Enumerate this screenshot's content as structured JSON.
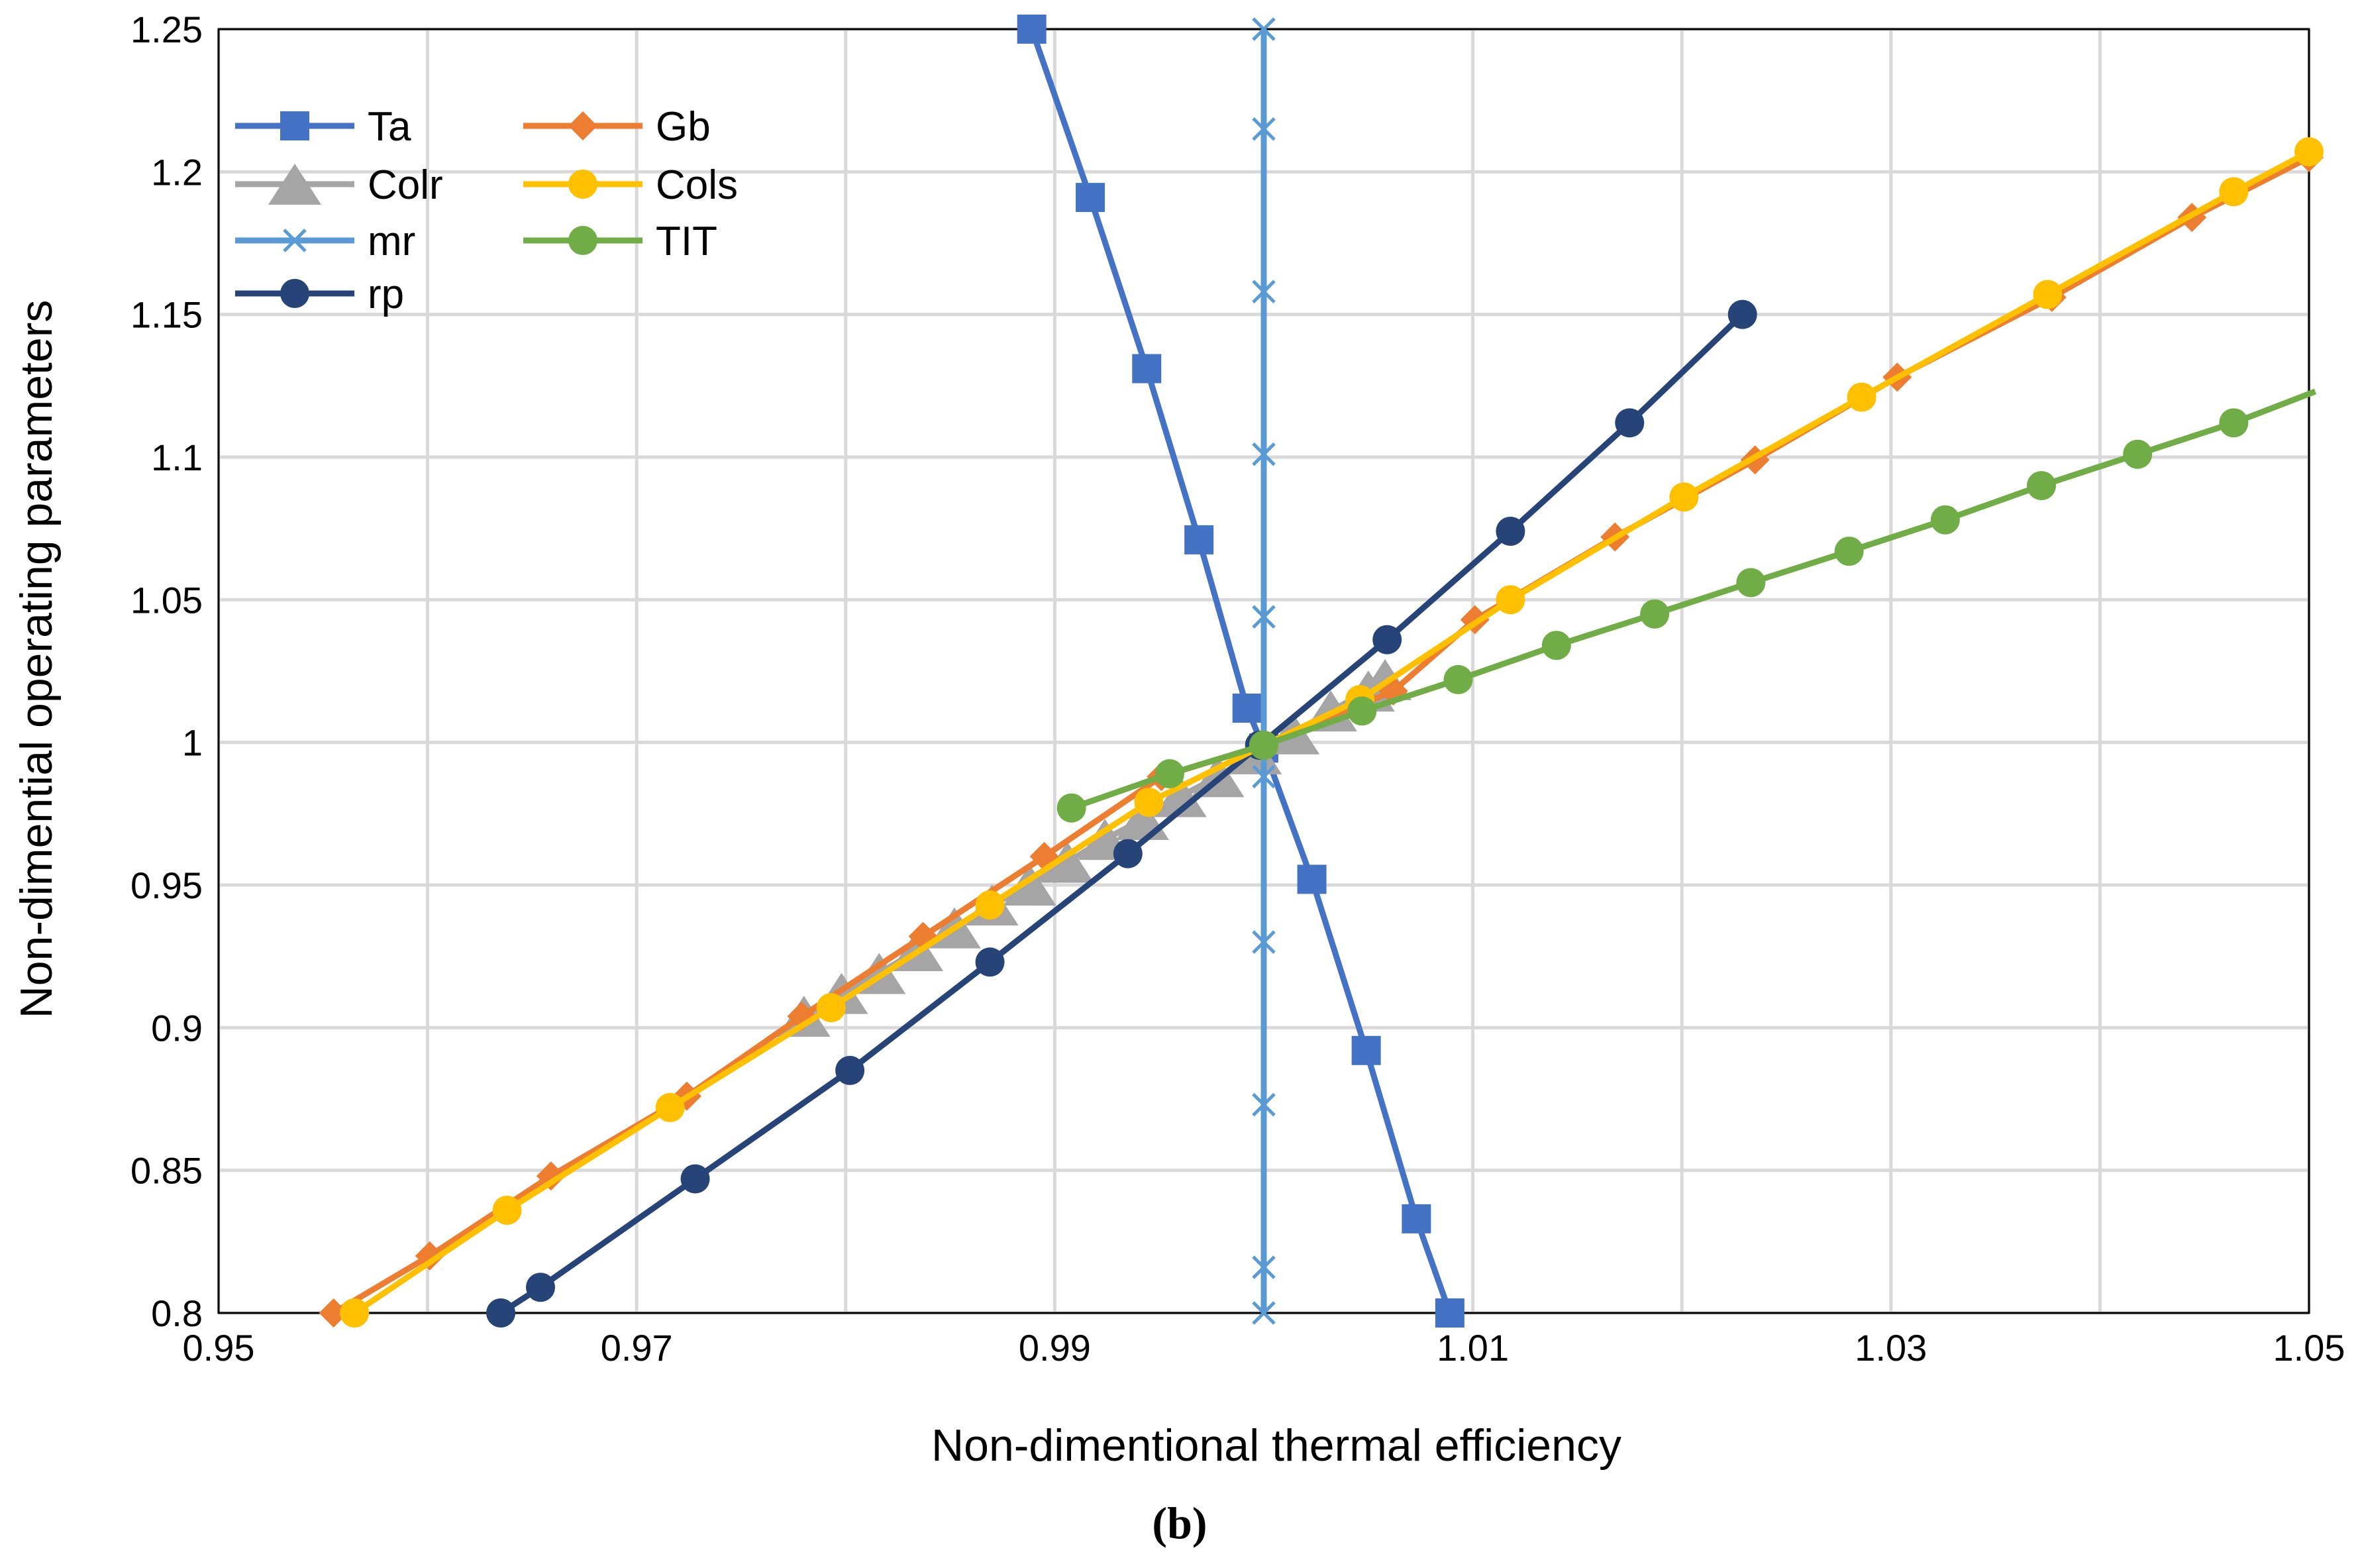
{
  "caption": {
    "prefix": "(",
    "letter": "b",
    "suffix": ")"
  },
  "chart_data": {
    "type": "line",
    "title": "",
    "xlabel": "Non-dimentional thermal efficiency",
    "ylabel": "Non-dimential operating parameters",
    "xlim": [
      0.95,
      1.05
    ],
    "ylim": [
      0.8,
      1.25
    ],
    "x_ticks": [
      "0.95",
      "0.97",
      "0.99",
      "1.01",
      "1.03",
      "1.05"
    ],
    "x_tick_values": [
      0.95,
      0.97,
      0.99,
      1.01,
      1.03,
      1.05
    ],
    "x_gridlines": [
      0.95,
      0.96,
      0.97,
      0.98,
      0.99,
      1.0,
      1.01,
      1.02,
      1.03,
      1.04,
      1.05
    ],
    "y_ticks": [
      "0.8",
      "0.85",
      "0.9",
      "0.95",
      "1",
      "1.05",
      "1.1",
      "1.15",
      "1.2",
      "1.25"
    ],
    "y_tick_values": [
      0.8,
      0.85,
      0.9,
      0.95,
      1.0,
      1.05,
      1.1,
      1.15,
      1.2,
      1.25
    ],
    "grid": true,
    "legend_position": "top-left",
    "series": [
      {
        "name": "Ta",
        "color": "#4472c4",
        "marker": "square",
        "points": [
          [
            0.9889,
            1.25
          ],
          [
            0.9917,
            1.191
          ],
          [
            0.9944,
            1.131
          ],
          [
            0.9969,
            1.071
          ],
          [
            0.9992,
            1.012
          ],
          [
            1.0,
            0.998
          ],
          [
            1.0023,
            0.952
          ],
          [
            1.0049,
            0.892
          ],
          [
            1.0073,
            0.833
          ],
          [
            1.0089,
            0.8
          ]
        ]
      },
      {
        "name": "Colr",
        "color": "#a5a5a5",
        "marker": "triangle",
        "points": [
          [
            0.978,
            0.904
          ],
          [
            0.9798,
            0.912
          ],
          [
            0.9816,
            0.919
          ],
          [
            0.9834,
            0.927
          ],
          [
            0.9852,
            0.935
          ],
          [
            0.987,
            0.943
          ],
          [
            0.9888,
            0.95
          ],
          [
            0.9906,
            0.958
          ],
          [
            0.9924,
            0.966
          ],
          [
            0.9942,
            0.973
          ],
          [
            0.996,
            0.981
          ],
          [
            0.9978,
            0.988
          ],
          [
            0.9996,
            0.996
          ],
          [
            1.0014,
            1.003
          ],
          [
            1.0032,
            1.011
          ],
          [
            1.005,
            1.018
          ],
          [
            1.0058,
            1.022
          ]
        ]
      },
      {
        "name": "mr",
        "color": "#5b9bd5",
        "marker": "x",
        "points": [
          [
            1.0,
            0.8
          ],
          [
            1.0,
            0.816
          ],
          [
            1.0,
            0.873
          ],
          [
            1.0,
            0.93
          ],
          [
            1.0,
            0.988
          ],
          [
            1.0,
            1.044
          ],
          [
            1.0,
            1.101
          ],
          [
            1.0,
            1.158
          ],
          [
            1.0,
            1.215
          ],
          [
            1.0,
            1.25
          ]
        ]
      },
      {
        "name": "rp",
        "color": "#264478",
        "marker": "circle",
        "points": [
          [
            0.9635,
            0.8
          ],
          [
            0.9654,
            0.809
          ],
          [
            0.9728,
            0.847
          ],
          [
            0.9802,
            0.885
          ],
          [
            0.9869,
            0.923
          ],
          [
            0.9935,
            0.961
          ],
          [
            0.9998,
            0.999
          ],
          [
            1.0059,
            1.036
          ],
          [
            1.0118,
            1.074
          ],
          [
            1.0175,
            1.112
          ],
          [
            1.0229,
            1.15
          ]
        ]
      },
      {
        "name": "Gb",
        "color": "#ed7d31",
        "marker": "diamond",
        "points": [
          [
            0.9555,
            0.8
          ],
          [
            0.9601,
            0.82
          ],
          [
            0.9659,
            0.848
          ],
          [
            0.9724,
            0.876
          ],
          [
            0.9779,
            0.904
          ],
          [
            0.9837,
            0.932
          ],
          [
            0.9895,
            0.96
          ],
          [
            0.9951,
            0.988
          ],
          [
            1.0,
            0.999
          ],
          [
            1.0062,
            1.018
          ],
          [
            1.0101,
            1.043
          ],
          [
            1.0168,
            1.072
          ],
          [
            1.0235,
            1.099
          ],
          [
            1.0303,
            1.128
          ],
          [
            1.0377,
            1.156
          ],
          [
            1.0444,
            1.184
          ],
          [
            1.05,
            1.205
          ]
        ]
      },
      {
        "name": "Cols",
        "color": "#ffc000",
        "marker": "circle",
        "points": [
          [
            0.9565,
            0.8
          ],
          [
            0.9638,
            0.836
          ],
          [
            0.9716,
            0.872
          ],
          [
            0.9793,
            0.907
          ],
          [
            0.9869,
            0.943
          ],
          [
            0.9945,
            0.979
          ],
          [
            1.0,
            0.999
          ],
          [
            1.0046,
            1.015
          ],
          [
            1.0118,
            1.05
          ],
          [
            1.0201,
            1.086
          ],
          [
            1.0286,
            1.121
          ],
          [
            1.0375,
            1.157
          ],
          [
            1.0464,
            1.193
          ],
          [
            1.05,
            1.207
          ]
        ]
      },
      {
        "name": "TIT",
        "color": "#70ad47",
        "marker": "circle",
        "points": [
          [
            0.9908,
            0.977
          ],
          [
            0.9955,
            0.989
          ],
          [
            1.0,
            0.999
          ],
          [
            1.0047,
            1.011
          ],
          [
            1.0093,
            1.022
          ],
          [
            1.014,
            1.034
          ],
          [
            1.0187,
            1.045
          ],
          [
            1.0233,
            1.056
          ],
          [
            1.028,
            1.067
          ],
          [
            1.0326,
            1.078
          ],
          [
            1.0372,
            1.09
          ],
          [
            1.0418,
            1.101
          ],
          [
            1.0464,
            1.112
          ],
          [
            1.0503,
            1.123
          ]
        ]
      }
    ]
  }
}
